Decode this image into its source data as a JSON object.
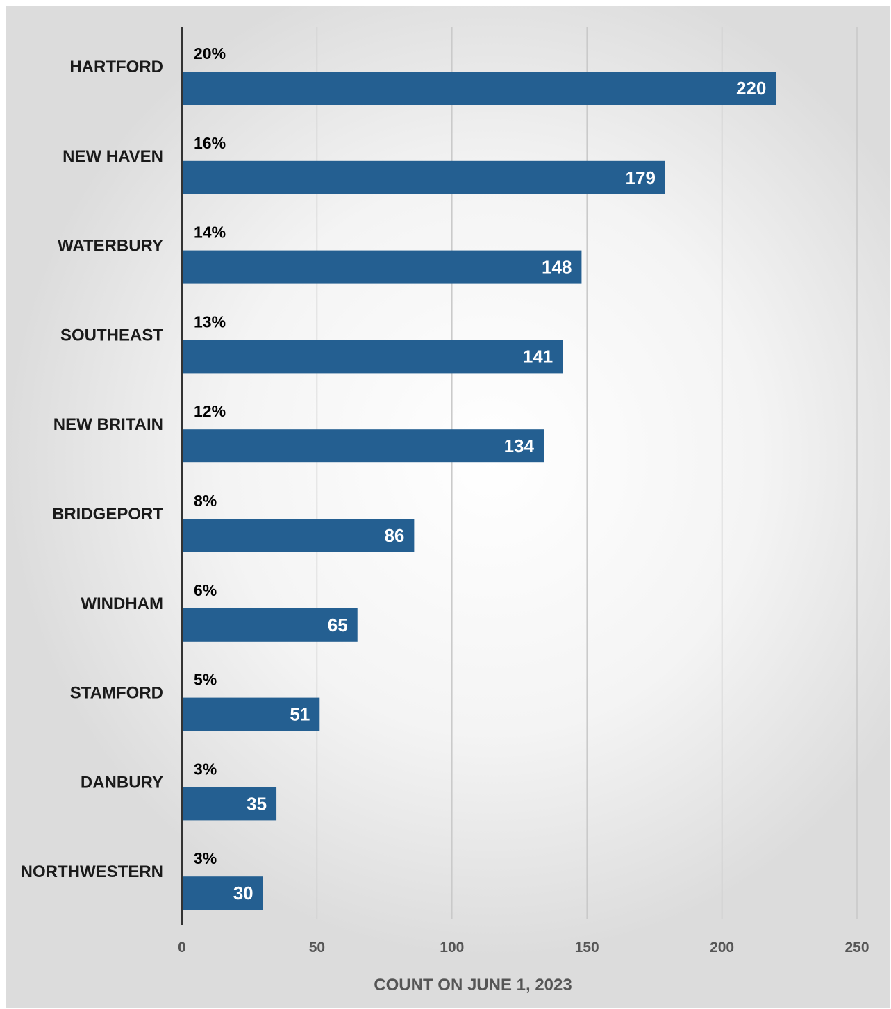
{
  "chart_data": {
    "type": "bar",
    "orientation": "horizontal",
    "categories": [
      "HARTFORD",
      "NEW HAVEN",
      "WATERBURY",
      "SOUTHEAST",
      "NEW BRITAIN",
      "BRIDGEPORT",
      "WINDHAM",
      "STAMFORD",
      "DANBURY",
      "NORTHWESTERN"
    ],
    "values": [
      220,
      179,
      148,
      141,
      134,
      86,
      65,
      51,
      35,
      30
    ],
    "percent_labels": [
      "20%",
      "16%",
      "14%",
      "13%",
      "12%",
      "8%",
      "6%",
      "5%",
      "3%",
      "3%"
    ],
    "xlabel": "COUNT ON JUNE 1, 2023",
    "ylabel": "",
    "xlim": [
      0,
      250
    ],
    "x_ticks": [
      0,
      50,
      100,
      150,
      200,
      250
    ],
    "x_tick_labels": [
      "0",
      "50",
      "100",
      "150",
      "200",
      "250"
    ],
    "grid": "vertical",
    "legend": "none",
    "bar_color": "#245f91",
    "gridline_color": "#c8c8c8",
    "axis_color": "#333333"
  }
}
